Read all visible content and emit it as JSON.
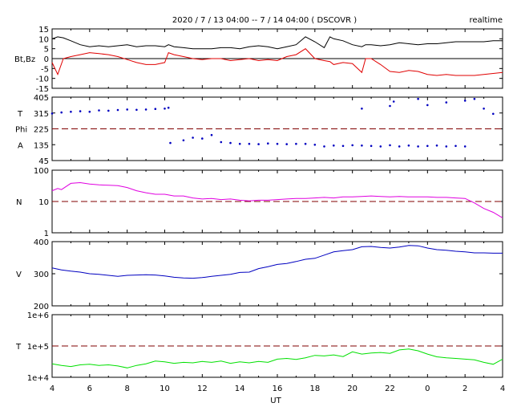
{
  "header": {
    "title": "2020 / 7 / 13   04:00 --  7 / 14   04:00 ( DSCOVR )",
    "mode": "realtime"
  },
  "colors": {
    "bt": "#000000",
    "bz": "#e00000",
    "theta": "#0000c0",
    "phi": "#0000c0",
    "density": "#e000e0",
    "speed": "#0000c0",
    "temperature": "#00e000",
    "refline": "#800000"
  },
  "x_axis": {
    "label": "UT",
    "ticks": [
      "4",
      "6",
      "8",
      "10",
      "12",
      "14",
      "16",
      "18",
      "20",
      "22",
      "0",
      "2",
      "4"
    ],
    "range_hours": [
      0,
      24
    ]
  },
  "chart_data": [
    {
      "type": "line",
      "panel": "magnetic-field",
      "ylabel": "Bt,Bz",
      "ylim": [
        -15,
        15
      ],
      "ticks": [
        "15",
        "10",
        "5",
        "0",
        "-5",
        "-10",
        "-15"
      ],
      "ref_line": {
        "value": 0,
        "style": "solid"
      },
      "x": [
        0,
        0.3,
        0.6,
        1,
        1.5,
        2,
        2.5,
        3,
        3.5,
        4,
        4.5,
        5,
        5.5,
        6,
        6.2,
        6.5,
        7,
        7.5,
        8,
        8.5,
        9,
        9.5,
        10,
        10.5,
        11,
        11.5,
        12,
        12.5,
        13,
        13.5,
        14,
        14.5,
        14.8,
        15,
        15.5,
        16,
        16.5,
        16.7,
        17,
        17.5,
        18,
        18.5,
        19,
        19.5,
        20,
        20.5,
        21,
        21.5,
        22,
        22.5,
        23,
        23.5,
        24
      ],
      "series": [
        {
          "name": "Bt",
          "values": [
            10,
            11,
            10.5,
            9,
            7,
            6,
            6.5,
            6,
            6.5,
            7,
            6,
            6.5,
            6.5,
            6,
            7,
            6,
            5.5,
            5,
            5,
            5,
            5.5,
            5.5,
            5,
            6,
            6.5,
            6,
            5,
            6,
            7,
            11,
            8.5,
            5.5,
            11,
            10,
            9,
            7,
            6,
            7,
            7,
            6.5,
            7,
            8,
            7.5,
            7,
            7.5,
            7.5,
            8,
            8.5,
            8.5,
            8.5,
            8.5,
            9,
            9
          ]
        },
        {
          "name": "Bz",
          "values": [
            -2,
            -8,
            0,
            1,
            2,
            3,
            2.5,
            2,
            1,
            -0.5,
            -2,
            -3,
            -3,
            -2,
            3,
            2,
            1,
            0,
            -0.5,
            0,
            0,
            -1,
            -0.5,
            0,
            -1,
            -0.5,
            -1,
            1,
            2,
            5,
            0,
            -1,
            -1.5,
            -3,
            -2,
            -2.5,
            -7,
            0,
            0,
            -3,
            -6.5,
            -7,
            -6,
            -6.5,
            -8,
            -8.5,
            -8,
            -8.5,
            -8.5,
            -8.5,
            -8,
            -7.5,
            -7
          ]
        }
      ]
    },
    {
      "type": "scatter",
      "panel": "angles",
      "ylabel_top": "T",
      "ylabel_mid": "Phi",
      "ylabel_bottom": "A",
      "ylim": [
        45,
        405
      ],
      "ticks": [
        "405",
        "315",
        "225",
        "135",
        "45"
      ],
      "ref_line": {
        "value": 225,
        "style": "dashed"
      },
      "segments": [
        {
          "name": "theta",
          "x": [
            0,
            0.5,
            1,
            1.5,
            2,
            2.5,
            3,
            3.5,
            4,
            4.5,
            5,
            5.5,
            6,
            6.2
          ],
          "values": [
            312,
            318,
            322,
            325,
            322,
            330,
            328,
            332,
            335,
            333,
            335,
            338,
            340,
            345
          ]
        },
        {
          "name": "phi",
          "x": [
            6.3,
            7,
            7.5,
            8,
            8.5,
            9,
            9.5,
            10,
            10.5,
            11,
            11.5,
            12,
            12.5,
            13,
            13.5,
            14,
            14.5,
            15,
            15.5,
            16,
            16.5,
            17,
            17.5,
            18,
            18.5,
            19,
            19.5,
            20,
            20.5,
            21,
            21.5,
            22
          ],
          "values": [
            145,
            160,
            175,
            170,
            190,
            150,
            145,
            140,
            140,
            138,
            142,
            140,
            138,
            140,
            140,
            135,
            125,
            130,
            128,
            132,
            130,
            128,
            125,
            132,
            125,
            130,
            125,
            128,
            130,
            125,
            128,
            125
          ]
        },
        {
          "name": "theta-late",
          "x": [
            16.5,
            18,
            18.2,
            19.5,
            20,
            21,
            22,
            22.5,
            23,
            23.5
          ],
          "values": [
            340,
            355,
            380,
            395,
            360,
            375,
            385,
            395,
            340,
            310
          ]
        }
      ]
    },
    {
      "type": "line",
      "panel": "density",
      "ylabel": "N",
      "ylim": [
        1,
        100
      ],
      "yscale": "log",
      "ticks": [
        "100",
        "10",
        "1"
      ],
      "ref_line": {
        "value": 10,
        "style": "dashed"
      },
      "x": [
        0,
        0.3,
        0.5,
        1,
        1.5,
        2,
        2.5,
        3,
        3.5,
        4,
        4.5,
        5,
        5.5,
        6,
        6.5,
        7,
        7.5,
        8,
        8.5,
        9,
        9.5,
        10,
        10.5,
        11,
        11.5,
        12,
        12.5,
        13,
        13.5,
        14,
        14.5,
        15,
        15.5,
        16,
        16.5,
        17,
        17.5,
        18,
        18.5,
        19,
        19.5,
        20,
        20.5,
        21,
        21.5,
        22,
        22.5,
        23,
        23.5,
        24
      ],
      "values": [
        22,
        26,
        24,
        38,
        40,
        36,
        34,
        33,
        32,
        28,
        22,
        19,
        17,
        17,
        15,
        15,
        13,
        12,
        12.5,
        11.5,
        12,
        11,
        10.5,
        11,
        11,
        11.5,
        12,
        12.5,
        12.5,
        13,
        13.5,
        13,
        14,
        14,
        14.5,
        15,
        14.5,
        14,
        14.5,
        14,
        14,
        14,
        13.5,
        13.5,
        13,
        12.5,
        9,
        6,
        4.5,
        3
      ]
    },
    {
      "type": "line",
      "panel": "speed",
      "ylabel": "V",
      "ylim": [
        200,
        400
      ],
      "ticks": [
        "400",
        "300",
        "200"
      ],
      "x": [
        0,
        0.5,
        1,
        1.5,
        2,
        2.5,
        3,
        3.5,
        4,
        4.5,
        5,
        5.5,
        6,
        6.5,
        7,
        7.5,
        8,
        8.5,
        9,
        9.5,
        10,
        10.5,
        11,
        11.5,
        12,
        12.5,
        13,
        13.5,
        14,
        14.5,
        15,
        15.5,
        16,
        16.5,
        17,
        17.5,
        18,
        18.5,
        19,
        19.5,
        20,
        20.5,
        21,
        21.5,
        22,
        22.5,
        23,
        23.5,
        24
      ],
      "values": [
        318,
        312,
        308,
        305,
        300,
        298,
        295,
        292,
        295,
        296,
        297,
        296,
        293,
        289,
        287,
        286,
        288,
        292,
        295,
        298,
        304,
        305,
        316,
        322,
        329,
        332,
        338,
        345,
        348,
        358,
        368,
        372,
        375,
        384,
        385,
        382,
        380,
        383,
        388,
        387,
        380,
        375,
        373,
        370,
        368,
        365,
        365,
        364,
        364
      ]
    },
    {
      "type": "line",
      "panel": "temperature",
      "ylabel": "T",
      "ylim": [
        10000,
        1000000
      ],
      "yscale": "log",
      "ticks": [
        "1e+6",
        "1e+5",
        "1e+4"
      ],
      "ref_line": {
        "value": 100000,
        "style": "dashed"
      },
      "x": [
        0,
        0.5,
        1,
        1.5,
        2,
        2.5,
        3,
        3.5,
        4,
        4.5,
        5,
        5.5,
        6,
        6.5,
        7,
        7.5,
        8,
        8.5,
        9,
        9.5,
        10,
        10.5,
        11,
        11.5,
        12,
        12.5,
        13,
        13.5,
        14,
        14.5,
        15,
        15.5,
        16,
        16.5,
        17,
        17.5,
        18,
        18.5,
        19,
        19.5,
        20,
        20.5,
        21,
        21.5,
        22,
        22.5,
        23,
        23.5,
        24
      ],
      "values": [
        27000,
        24000,
        22000,
        25000,
        26000,
        24000,
        25000,
        23000,
        20000,
        24000,
        27000,
        33000,
        31000,
        28000,
        30000,
        29000,
        32000,
        30000,
        33000,
        28000,
        31000,
        29000,
        32000,
        30000,
        38000,
        40000,
        37000,
        42000,
        50000,
        48000,
        52000,
        46000,
        65000,
        55000,
        60000,
        62000,
        58000,
        75000,
        80000,
        70000,
        55000,
        45000,
        42000,
        40000,
        38000,
        36000,
        30000,
        26000,
        38000
      ]
    }
  ]
}
